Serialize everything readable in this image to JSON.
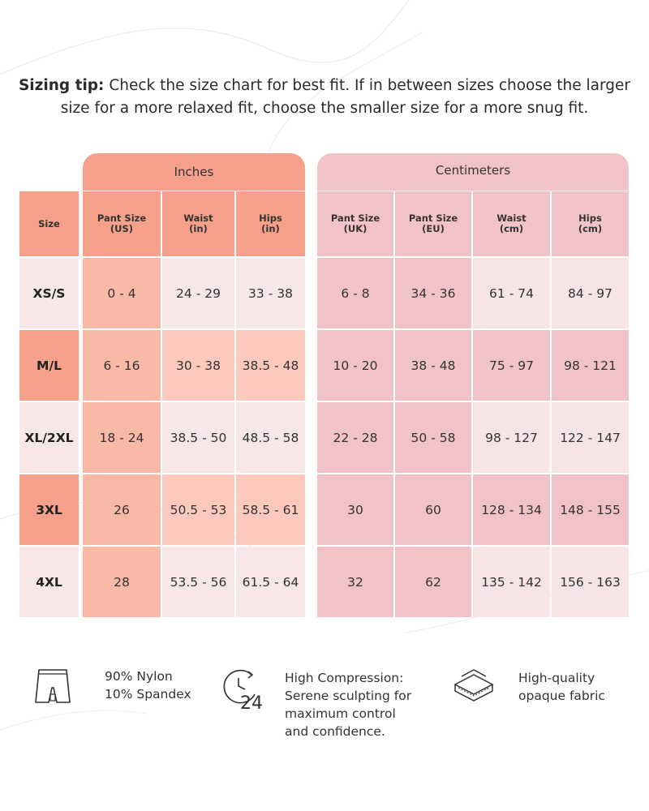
{
  "tip": {
    "label": "Sizing tip:",
    "text": " Check the size chart for best fit. If in between sizes choose the larger size for a more relaxed fit, choose the smaller size for a more snug fit."
  },
  "groups": {
    "inches": "Inches",
    "centimeters": "Centimeters"
  },
  "columns": {
    "size": "Size",
    "inches": [
      "Pant Size\n(US)",
      "Waist\n(in)",
      "Hips\n(in)"
    ],
    "cm": [
      "Pant Size\n(UK)",
      "Pant Size\n(EU)",
      "Waist\n(cm)",
      "Hips\n(cm)"
    ]
  },
  "rows": [
    {
      "size": "XS/S",
      "inches": [
        "0 - 4",
        "24 - 29",
        "33 - 38"
      ],
      "cm": [
        "6 - 8",
        "34 - 36",
        "61 - 74",
        "84 - 97"
      ]
    },
    {
      "size": "M/L",
      "inches": [
        "6 - 16",
        "30 - 38",
        "38.5 - 48"
      ],
      "cm": [
        "10 - 20",
        "38 - 48",
        "75 - 97",
        "98 - 121"
      ]
    },
    {
      "size": "XL/2XL",
      "inches": [
        "18 - 24",
        "38.5 - 50",
        "48.5 - 58"
      ],
      "cm": [
        "22 - 28",
        "50 - 58",
        "98 - 127",
        "122 - 147"
      ]
    },
    {
      "size": "3XL",
      "inches": [
        "26",
        "50.5 - 53",
        "58.5 - 61"
      ],
      "cm": [
        "30",
        "60",
        "128 - 134",
        "148 - 155"
      ]
    },
    {
      "size": "4XL",
      "inches": [
        "28",
        "53.5 - 56",
        "61.5 - 64"
      ],
      "cm": [
        "32",
        "62",
        "135 - 142",
        "156 - 163"
      ]
    }
  ],
  "features": [
    {
      "icon": "shorts-icon",
      "lines": [
        "90% Nylon",
        "10% Spandex"
      ]
    },
    {
      "icon": "clock-24-icon",
      "lines": [
        "High Compression:",
        "Serene sculpting for",
        "maximum control",
        "and confidence."
      ]
    },
    {
      "icon": "fabric-layers-icon",
      "lines": [
        "High-quality",
        "opaque fabric"
      ]
    }
  ],
  "colors": {
    "inch_header": "#f5a08a",
    "inch_pant": "#f8b9a6",
    "inch_light": "#f7e7e6",
    "inch_mid": "#fcc9bc",
    "cm_header": "#f2c3c6",
    "cm_pant": "#f2c3c6",
    "cm_light": "#f7e4e4",
    "size_dark": "#f4a08a",
    "size_light": "#f7e7e6"
  }
}
